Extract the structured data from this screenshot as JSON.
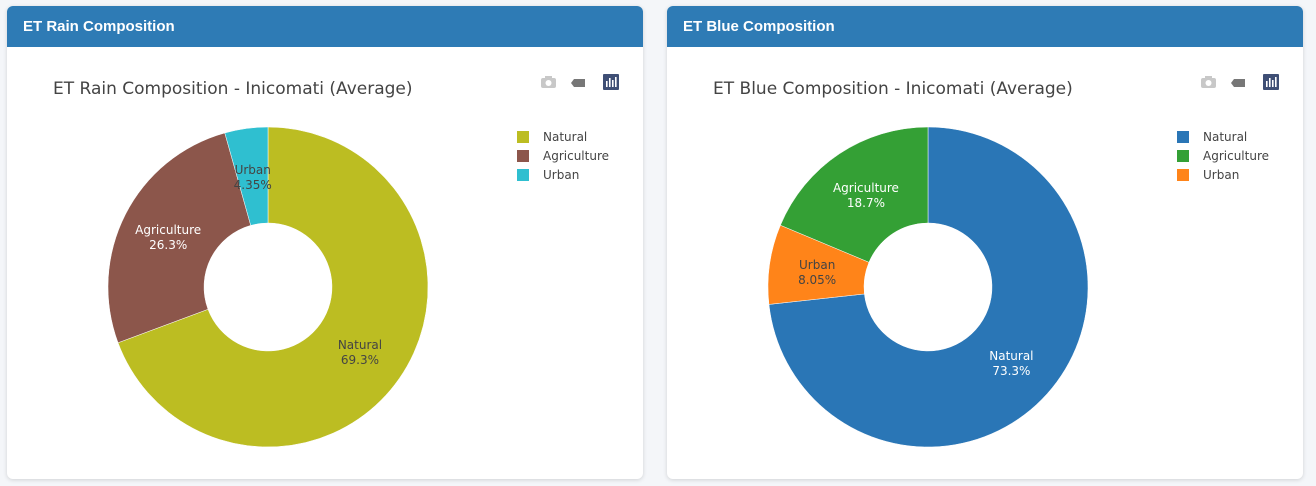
{
  "panels": [
    {
      "header": "ET Rain Composition",
      "chart_data": {
        "type": "pie",
        "hole": 0.4,
        "title": "ET Rain Composition - Inicomati (Average)",
        "legend_position": "top-right",
        "labels": [
          "Natural",
          "Agriculture",
          "Urban"
        ],
        "values": [
          69.3,
          26.3,
          4.35
        ],
        "value_labels": [
          "69.3%",
          "26.3%",
          "4.35%"
        ],
        "colors": [
          "#bcbd22",
          "#8c564b",
          "#2fbfd0"
        ],
        "label_colors": [
          "#444444",
          "#ffffff",
          "#444444"
        ],
        "direction": "clockwise",
        "rotation": 0
      }
    },
    {
      "header": "ET Blue Composition",
      "chart_data": {
        "type": "pie",
        "hole": 0.4,
        "title": "ET Blue Composition - Inicomati (Average)",
        "legend_position": "top-right",
        "labels": [
          "Natural",
          "Agriculture",
          "Urban"
        ],
        "values": [
          73.3,
          18.7,
          8.05
        ],
        "value_labels": [
          "73.3%",
          "18.7%",
          "8.05%"
        ],
        "colors": [
          "#2a76b6",
          "#34a035",
          "#ff8419"
        ],
        "label_colors": [
          "#ffffff",
          "#ffffff",
          "#444444"
        ],
        "direction": "clockwise",
        "rotation": 0,
        "slice_order": [
          0,
          2,
          1
        ]
      }
    }
  ],
  "modebar": {
    "icons": [
      "camera-icon",
      "tag-icon",
      "plotly-logo-icon"
    ]
  }
}
